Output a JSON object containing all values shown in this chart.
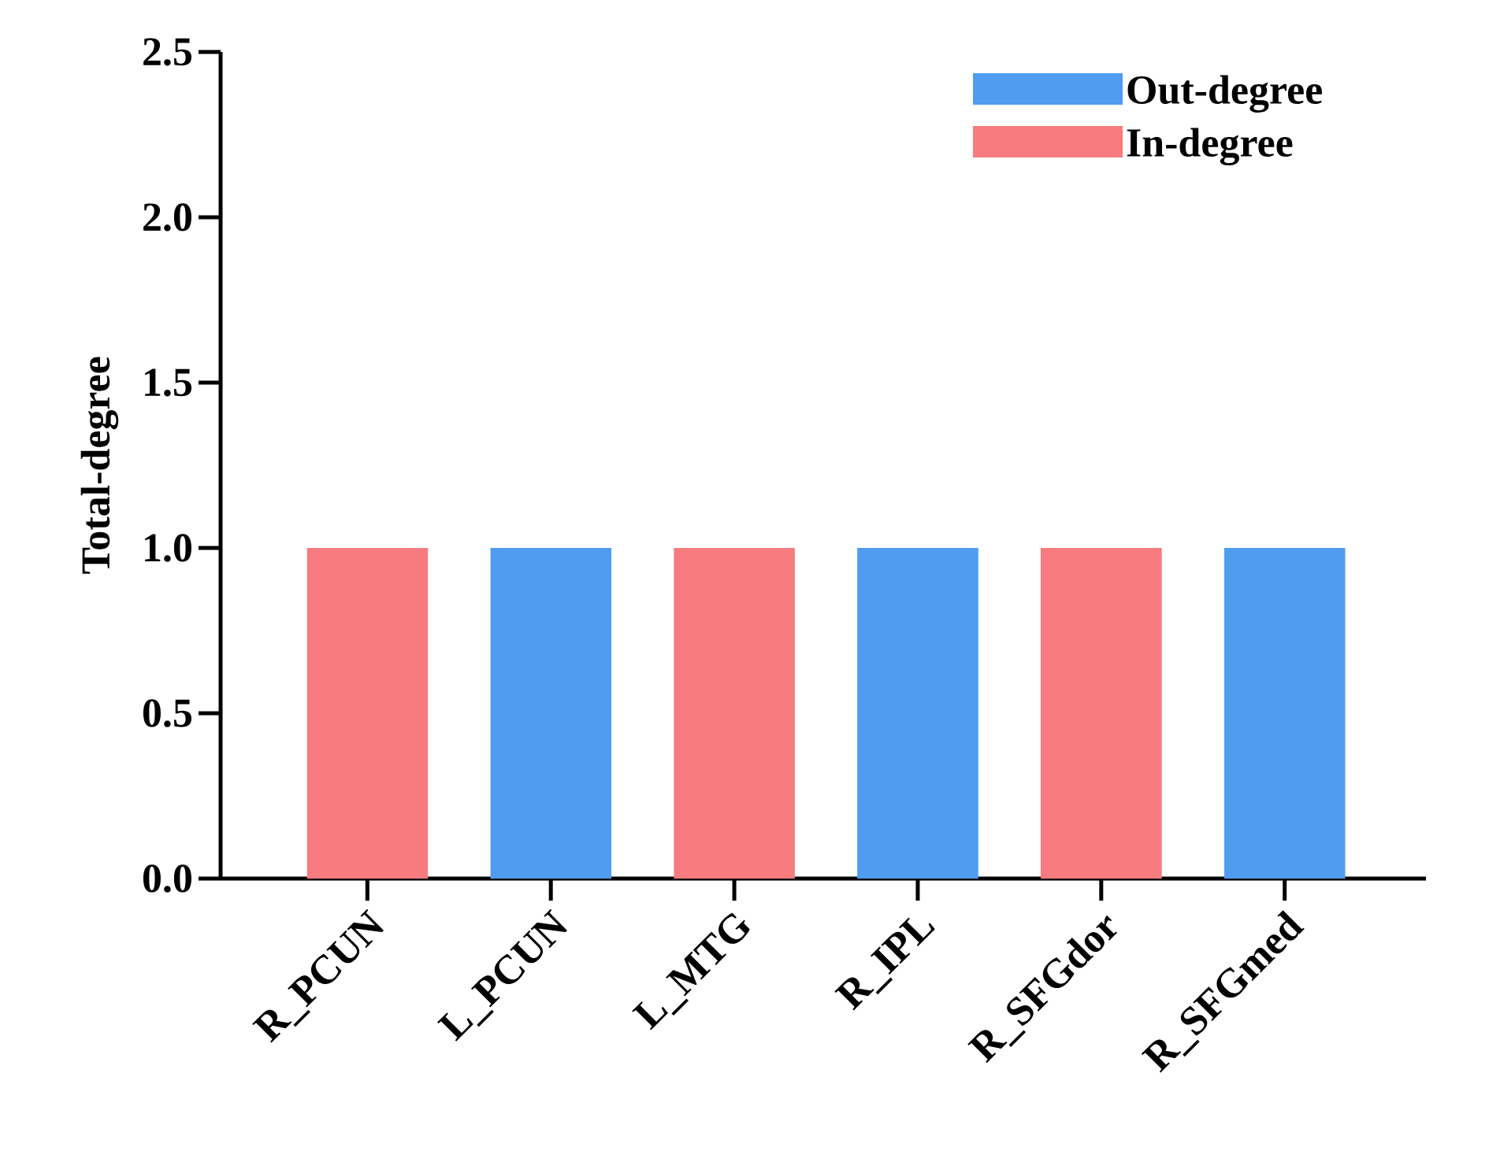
{
  "chart_data": {
    "type": "bar",
    "stacked": true,
    "ylabel": "Total-degree",
    "categories": [
      "R_PCUN",
      "L_PCUN",
      "L_MTG",
      "R_IPL",
      "R_SFGdor",
      "R_SFGmed"
    ],
    "series": [
      {
        "name": "Out-degree",
        "color": "#4f9cf0",
        "values": [
          null,
          1,
          null,
          1,
          null,
          1
        ]
      },
      {
        "name": "In-degree",
        "color": "#f77b7f",
        "values": [
          1,
          null,
          1,
          null,
          1,
          null
        ]
      }
    ],
    "ylim": [
      0,
      2.5
    ],
    "yticks": [
      {
        "value": 0,
        "label": "0.0"
      },
      {
        "value": 0.5,
        "label": "0.5"
      },
      {
        "value": 1,
        "label": "1.0"
      },
      {
        "value": 1.5,
        "label": "1.5"
      },
      {
        "value": 2,
        "label": "2.0"
      },
      {
        "value": 2.5,
        "label": "2.5"
      }
    ],
    "grid": false,
    "legend": "top right"
  }
}
